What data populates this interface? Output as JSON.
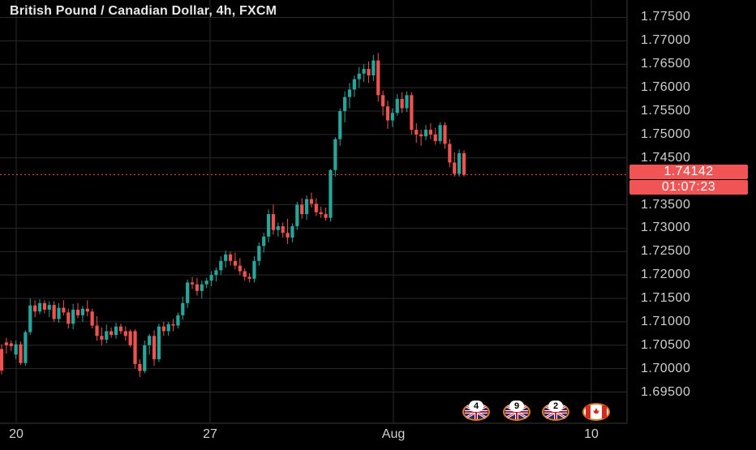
{
  "header": {
    "title": "British Pound / Canadian Dollar, 4h, FXCM"
  },
  "price_axis": {
    "labels": [
      "1.77500",
      "1.77000",
      "1.76500",
      "1.76000",
      "1.75500",
      "1.75000",
      "1.74500",
      "1.73500",
      "1.73000",
      "1.72500",
      "1.72000",
      "1.71500",
      "1.71000",
      "1.70500",
      "1.70000",
      "1.69500"
    ],
    "current_price": "1.74142",
    "countdown": "01:07:23"
  },
  "time_axis": {
    "labels": [
      "20",
      "27",
      "Aug",
      "10"
    ]
  },
  "events": [
    {
      "flag": "uk-flag-icon",
      "count": "4"
    },
    {
      "flag": "uk-flag-icon",
      "count": "9"
    },
    {
      "flag": "uk-flag-icon",
      "count": "2"
    },
    {
      "flag": "canada-flag-icon",
      "count": ""
    }
  ],
  "colors": {
    "up": "#26a69a",
    "down": "#ef5350",
    "price_line": "#f05454",
    "grid": "#2a2a2a"
  },
  "chart_data": {
    "type": "candlestick",
    "symbol": "GBPCAD",
    "timeframe": "4h",
    "ylim": [
      1.6925,
      1.7775
    ],
    "candles": [
      [
        1.7042,
        1.7052,
        1.6988,
        1.6996
      ],
      [
        1.7056,
        1.7066,
        1.7032,
        1.705
      ],
      [
        1.7054,
        1.706,
        1.7038,
        1.7048
      ],
      [
        1.703,
        1.706,
        1.702,
        1.7052
      ],
      [
        1.7052,
        1.7058,
        1.7008,
        1.7012
      ],
      [
        1.7012,
        1.7082,
        1.7006,
        1.7078
      ],
      [
        1.7078,
        1.715,
        1.7072,
        1.7135
      ],
      [
        1.7135,
        1.7146,
        1.711,
        1.7122
      ],
      [
        1.7122,
        1.7148,
        1.7116,
        1.714
      ],
      [
        1.714,
        1.7146,
        1.7118,
        1.7126
      ],
      [
        1.7126,
        1.7144,
        1.711,
        1.7136
      ],
      [
        1.7136,
        1.7144,
        1.71,
        1.7106
      ],
      [
        1.7106,
        1.714,
        1.7098,
        1.713
      ],
      [
        1.713,
        1.7146,
        1.7114,
        1.712
      ],
      [
        1.712,
        1.7128,
        1.7086,
        1.7096
      ],
      [
        1.7096,
        1.7138,
        1.7084,
        1.7126
      ],
      [
        1.7126,
        1.714,
        1.7108,
        1.7114
      ],
      [
        1.7114,
        1.7134,
        1.71,
        1.7128
      ],
      [
        1.7128,
        1.7146,
        1.7112,
        1.7122
      ],
      [
        1.7122,
        1.7128,
        1.7086,
        1.7092
      ],
      [
        1.7092,
        1.7112,
        1.706,
        1.707
      ],
      [
        1.707,
        1.7088,
        1.705,
        1.7062
      ],
      [
        1.7062,
        1.7094,
        1.7054,
        1.708
      ],
      [
        1.708,
        1.7088,
        1.7066,
        1.7072
      ],
      [
        1.7072,
        1.7098,
        1.7064,
        1.709
      ],
      [
        1.709,
        1.7096,
        1.7074,
        1.708
      ],
      [
        1.708,
        1.709,
        1.706,
        1.707
      ],
      [
        1.708,
        1.7084,
        1.7046,
        1.705
      ],
      [
        1.708,
        1.7084,
        1.7,
        1.701
      ],
      [
        1.701,
        1.702,
        1.6982,
        1.6995
      ],
      [
        1.6995,
        1.706,
        1.699,
        1.705
      ],
      [
        1.705,
        1.7074,
        1.703,
        1.707
      ],
      [
        1.707,
        1.7082,
        1.7006,
        1.702
      ],
      [
        1.702,
        1.7096,
        1.7014,
        1.709
      ],
      [
        1.709,
        1.71,
        1.707,
        1.708
      ],
      [
        1.708,
        1.71,
        1.707,
        1.7095
      ],
      [
        1.7095,
        1.7106,
        1.708,
        1.7092
      ],
      [
        1.7092,
        1.712,
        1.7086,
        1.7114
      ],
      [
        1.7114,
        1.7154,
        1.7104,
        1.714
      ],
      [
        1.714,
        1.719,
        1.713,
        1.7184
      ],
      [
        1.7184,
        1.7196,
        1.717,
        1.718
      ],
      [
        1.718,
        1.7194,
        1.7156,
        1.7166
      ],
      [
        1.7166,
        1.7188,
        1.715,
        1.718
      ],
      [
        1.718,
        1.7194,
        1.7172,
        1.7188
      ],
      [
        1.7188,
        1.7208,
        1.7176,
        1.72
      ],
      [
        1.72,
        1.7216,
        1.7186,
        1.721
      ],
      [
        1.721,
        1.724,
        1.72,
        1.723
      ],
      [
        1.723,
        1.7252,
        1.7216,
        1.7244
      ],
      [
        1.7244,
        1.725,
        1.722,
        1.723
      ],
      [
        1.723,
        1.7248,
        1.7212,
        1.722
      ],
      [
        1.722,
        1.7236,
        1.72,
        1.7208
      ],
      [
        1.7208,
        1.7214,
        1.7188,
        1.7196
      ],
      [
        1.7196,
        1.7204,
        1.7184,
        1.7192
      ],
      [
        1.7192,
        1.724,
        1.7184,
        1.723
      ],
      [
        1.723,
        1.727,
        1.722,
        1.7262
      ],
      [
        1.7262,
        1.729,
        1.7248,
        1.7282
      ],
      [
        1.7282,
        1.734,
        1.727,
        1.733
      ],
      [
        1.733,
        1.735,
        1.7286,
        1.7296
      ],
      [
        1.7296,
        1.7312,
        1.7282,
        1.7304
      ],
      [
        1.7304,
        1.7312,
        1.728,
        1.729
      ],
      [
        1.729,
        1.732,
        1.7266,
        1.728
      ],
      [
        1.728,
        1.731,
        1.727,
        1.7304
      ],
      [
        1.7304,
        1.7356,
        1.7296,
        1.735
      ],
      [
        1.735,
        1.7364,
        1.732,
        1.733
      ],
      [
        1.733,
        1.737,
        1.7318,
        1.7362
      ],
      [
        1.7362,
        1.7376,
        1.7344,
        1.7352
      ],
      [
        1.7352,
        1.7364,
        1.7326,
        1.7334
      ],
      [
        1.7334,
        1.7346,
        1.7322,
        1.733
      ],
      [
        1.733,
        1.7344,
        1.7316,
        1.7322
      ],
      [
        1.7322,
        1.7426,
        1.7314,
        1.7424
      ],
      [
        1.7424,
        1.7494,
        1.741,
        1.749
      ],
      [
        1.749,
        1.7556,
        1.7476,
        1.755
      ],
      [
        1.755,
        1.7592,
        1.7526,
        1.758
      ],
      [
        1.758,
        1.761,
        1.7556,
        1.7596
      ],
      [
        1.7596,
        1.7626,
        1.758,
        1.7618
      ],
      [
        1.7618,
        1.7644,
        1.76,
        1.763
      ],
      [
        1.763,
        1.765,
        1.7612,
        1.764
      ],
      [
        1.764,
        1.7656,
        1.761,
        1.7626
      ],
      [
        1.7626,
        1.767,
        1.7614,
        1.7658
      ],
      [
        1.7658,
        1.7674,
        1.757,
        1.7584
      ],
      [
        1.7584,
        1.7594,
        1.754,
        1.756
      ],
      [
        1.756,
        1.7572,
        1.7512,
        1.753
      ],
      [
        1.753,
        1.7556,
        1.7516,
        1.7546
      ],
      [
        1.7546,
        1.7586,
        1.754,
        1.7576
      ],
      [
        1.7576,
        1.759,
        1.7546,
        1.7556
      ],
      [
        1.7556,
        1.7592,
        1.7548,
        1.7584
      ],
      [
        1.7584,
        1.759,
        1.75,
        1.751
      ],
      [
        1.751,
        1.7524,
        1.7482,
        1.75
      ],
      [
        1.75,
        1.751,
        1.7476,
        1.7496
      ],
      [
        1.7496,
        1.752,
        1.7488,
        1.751
      ],
      [
        1.751,
        1.7524,
        1.749,
        1.75
      ],
      [
        1.75,
        1.7514,
        1.7478,
        1.7486
      ],
      [
        1.7486,
        1.7526,
        1.748,
        1.752
      ],
      [
        1.752,
        1.7526,
        1.747,
        1.748
      ],
      [
        1.748,
        1.749,
        1.743,
        1.744
      ],
      [
        1.744,
        1.7462,
        1.741,
        1.7416
      ],
      [
        1.7416,
        1.7468,
        1.741,
        1.746
      ],
      [
        1.746,
        1.7466,
        1.741,
        1.7414
      ]
    ]
  }
}
